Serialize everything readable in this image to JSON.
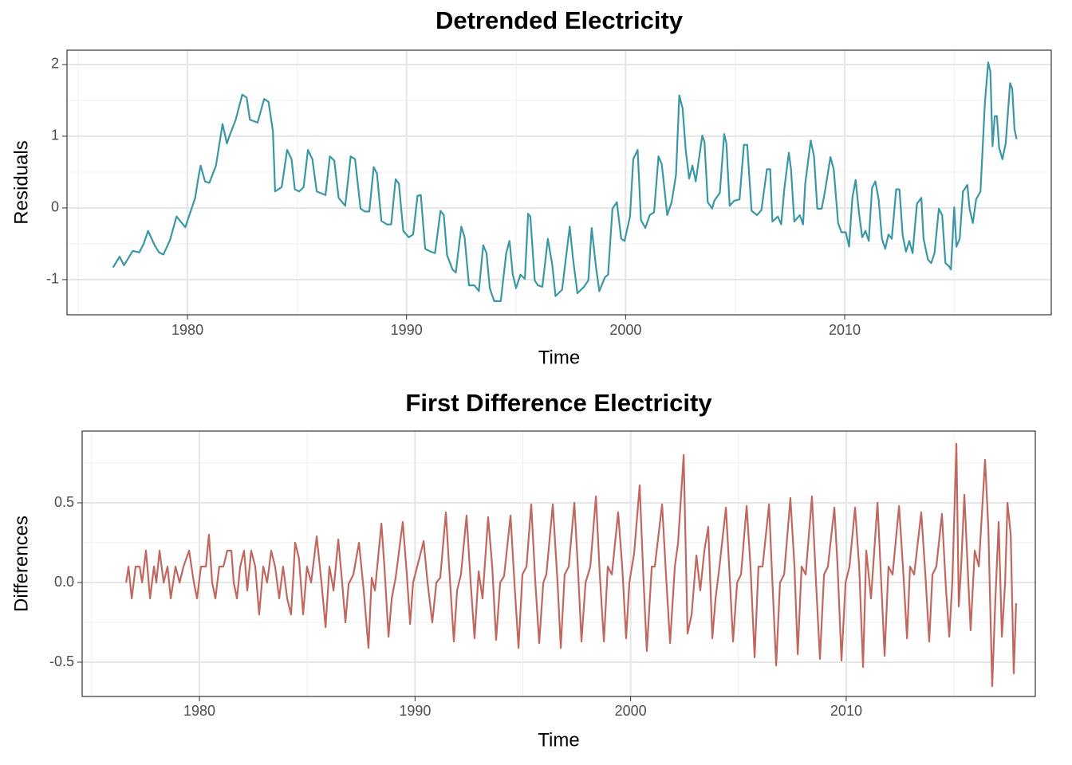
{
  "chart_data": [
    {
      "type": "line",
      "title": "Detrended Electricity",
      "x_label": "Time",
      "y_label": "Residuals",
      "color": "#3a97a5",
      "xlim": [
        1974.5,
        2019.43
      ],
      "ylim": [
        -1.49,
        2.2
      ],
      "xticks": [
        1980,
        1990,
        2000,
        2010
      ],
      "yticks": [
        -1,
        0,
        1,
        2
      ],
      "grid": true,
      "x": [
        1976.6,
        1976.9,
        1977.1,
        1977.5,
        1977.8,
        1978.0,
        1978.2,
        1978.5,
        1978.7,
        1978.9,
        1979.2,
        1979.5,
        1979.9,
        1980.35,
        1980.5,
        1980.6,
        1980.8,
        1981.0,
        1981.3,
        1981.6,
        1981.8,
        1981.9,
        1982.2,
        1982.5,
        1982.7,
        1982.85,
        1983.2,
        1983.5,
        1983.7,
        1983.9,
        1984.0,
        1984.3,
        1984.55,
        1984.75,
        1984.9,
        1985.1,
        1985.3,
        1985.5,
        1985.7,
        1985.9,
        1986.3,
        1986.5,
        1986.7,
        1986.9,
        1987.2,
        1987.45,
        1987.65,
        1987.9,
        1988.1,
        1988.3,
        1988.5,
        1988.65,
        1988.85,
        1989.1,
        1989.3,
        1989.5,
        1989.65,
        1989.85,
        1990.1,
        1990.3,
        1990.5,
        1990.65,
        1990.85,
        1991.1,
        1991.3,
        1991.55,
        1991.7,
        1991.85,
        1992.1,
        1992.25,
        1992.5,
        1992.65,
        1992.85,
        1993.1,
        1993.3,
        1993.5,
        1993.65,
        1993.8,
        1994.0,
        1994.3,
        1994.55,
        1994.7,
        1994.85,
        1995.0,
        1995.2,
        1995.4,
        1995.55,
        1995.65,
        1995.85,
        1996.0,
        1996.2,
        1996.45,
        1996.65,
        1996.8,
        1997.1,
        1997.45,
        1997.6,
        1997.8,
        1998.1,
        1998.3,
        1998.45,
        1998.65,
        1998.8,
        1999.05,
        1999.2,
        1999.4,
        1999.6,
        1999.8,
        1999.95,
        2000.2,
        2000.35,
        2000.55,
        2000.7,
        2000.9,
        2001.1,
        2001.3,
        2001.5,
        2001.65,
        2001.9,
        2002.1,
        2002.3,
        2002.45,
        2002.6,
        2002.75,
        2002.9,
        2003.05,
        2003.2,
        2003.5,
        2003.6,
        2003.75,
        2003.95,
        2004.05,
        2004.3,
        2004.5,
        2004.6,
        2004.75,
        2004.95,
        2005.2,
        2005.4,
        2005.55,
        2005.75,
        2006.0,
        2006.2,
        2006.45,
        2006.6,
        2006.7,
        2006.95,
        2007.1,
        2007.25,
        2007.45,
        2007.55,
        2007.7,
        2007.95,
        2008.1,
        2008.2,
        2008.45,
        2008.6,
        2008.75,
        2008.95,
        2009.1,
        2009.35,
        2009.5,
        2009.7,
        2009.85,
        2010.05,
        2010.2,
        2010.35,
        2010.5,
        2010.65,
        2010.8,
        2010.95,
        2011.1,
        2011.25,
        2011.4,
        2011.55,
        2011.7,
        2011.85,
        2012.0,
        2012.15,
        2012.35,
        2012.5,
        2012.65,
        2012.8,
        2012.95,
        2013.1,
        2013.3,
        2013.5,
        2013.6,
        2013.8,
        2013.95,
        2014.1,
        2014.3,
        2014.45,
        2014.6,
        2014.75,
        2014.85,
        2015.0,
        2015.1,
        2015.25,
        2015.4,
        2015.6,
        2015.7,
        2015.85,
        2016.0,
        2016.2,
        2016.4,
        2016.55,
        2016.65,
        2016.75,
        2016.85,
        2016.95,
        2017.05,
        2017.2,
        2017.35,
        2017.55,
        2017.65,
        2017.75,
        2017.85
      ],
      "values": [
        -0.83,
        -0.68,
        -0.8,
        -0.6,
        -0.62,
        -0.5,
        -0.32,
        -0.52,
        -0.62,
        -0.65,
        -0.45,
        -0.12,
        -0.27,
        0.14,
        0.43,
        0.59,
        0.37,
        0.35,
        0.59,
        1.17,
        0.9,
        0.99,
        1.23,
        1.58,
        1.54,
        1.23,
        1.19,
        1.52,
        1.48,
        1.07,
        0.23,
        0.29,
        0.81,
        0.68,
        0.26,
        0.23,
        0.29,
        0.81,
        0.68,
        0.23,
        0.18,
        0.72,
        0.66,
        0.14,
        0.03,
        0.72,
        0.68,
        -0.01,
        -0.05,
        -0.05,
        0.57,
        0.48,
        -0.18,
        -0.23,
        -0.23,
        0.4,
        0.34,
        -0.32,
        -0.41,
        -0.37,
        0.17,
        0.18,
        -0.57,
        -0.61,
        -0.63,
        -0.04,
        -0.1,
        -0.66,
        -0.86,
        -0.9,
        -0.26,
        -0.41,
        -1.08,
        -1.08,
        -1.16,
        -0.52,
        -0.63,
        -1.12,
        -1.3,
        -1.3,
        -0.63,
        -0.46,
        -0.93,
        -1.12,
        -0.93,
        -0.99,
        -0.08,
        -0.12,
        -1.01,
        -1.08,
        -1.1,
        -0.43,
        -0.79,
        -1.23,
        -1.14,
        -0.26,
        -0.71,
        -1.19,
        -1.1,
        -1.01,
        -0.28,
        -0.83,
        -1.16,
        -0.97,
        -0.93,
        -0.01,
        0.08,
        -0.43,
        -0.46,
        -0.12,
        0.68,
        0.81,
        -0.17,
        -0.28,
        -0.1,
        -0.06,
        0.72,
        0.61,
        -0.1,
        0.08,
        0.46,
        1.57,
        1.39,
        0.79,
        0.41,
        0.59,
        0.37,
        1.01,
        0.92,
        0.08,
        -0.01,
        0.1,
        0.21,
        1.03,
        0.9,
        0.03,
        0.1,
        0.12,
        0.88,
        0.88,
        -0.04,
        -0.1,
        -0.03,
        0.54,
        0.54,
        -0.19,
        -0.12,
        -0.23,
        0.28,
        0.77,
        0.54,
        -0.19,
        -0.1,
        -0.23,
        0.34,
        0.94,
        0.72,
        -0.01,
        -0.01,
        0.23,
        0.71,
        0.54,
        -0.21,
        -0.34,
        -0.34,
        -0.54,
        0.14,
        0.39,
        -0.06,
        -0.41,
        -0.32,
        -0.46,
        0.28,
        0.37,
        0.12,
        -0.43,
        -0.57,
        -0.37,
        -0.43,
        0.26,
        0.26,
        -0.39,
        -0.61,
        -0.46,
        -0.63,
        0.06,
        0.14,
        -0.43,
        -0.72,
        -0.77,
        -0.63,
        -0.01,
        -0.1,
        -0.77,
        -0.81,
        -0.86,
        0.01,
        -0.54,
        -0.43,
        0.23,
        0.32,
        -0.01,
        -0.21,
        0.12,
        0.23,
        1.46,
        2.03,
        1.9,
        0.86,
        1.28,
        1.28,
        0.84,
        0.68,
        0.9,
        1.74,
        1.66,
        1.1,
        0.96
      ]
    },
    {
      "type": "line",
      "title": "First Difference Electricity",
      "x_label": "Time",
      "y_label": "Differences",
      "color": "#c0685e",
      "xlim": [
        1974.56,
        2018.77
      ],
      "ylim": [
        -0.715,
        0.95
      ],
      "xticks": [
        1980,
        1990,
        2000,
        2010
      ],
      "yticks": [
        -0.5,
        {
          "value": 0,
          "label": "0.0"
        },
        0.5
      ],
      "grid": true,
      "x": [
        1976.6,
        1976.71,
        1976.86,
        1977.04,
        1977.23,
        1977.34,
        1977.52,
        1977.71,
        1977.89,
        1978.0,
        1978.15,
        1978.34,
        1978.52,
        1978.67,
        1978.89,
        1979.08,
        1979.26,
        1979.52,
        1979.74,
        1979.89,
        1980.07,
        1980.3,
        1980.44,
        1980.59,
        1980.74,
        1980.92,
        1981.11,
        1981.29,
        1981.48,
        1981.59,
        1981.74,
        1981.89,
        1982.07,
        1982.22,
        1982.4,
        1982.59,
        1982.77,
        1982.96,
        1983.14,
        1983.33,
        1983.51,
        1983.7,
        1983.88,
        1984.07,
        1984.25,
        1984.44,
        1984.62,
        1984.81,
        1984.99,
        1985.18,
        1985.44,
        1985.66,
        1985.85,
        1986.03,
        1986.22,
        1986.44,
        1986.62,
        1986.77,
        1986.92,
        1987.14,
        1987.4,
        1987.62,
        1987.84,
        1987.99,
        1988.14,
        1988.44,
        1988.58,
        1988.77,
        1988.92,
        1989.1,
        1989.43,
        1989.62,
        1989.77,
        1989.91,
        1990.1,
        1990.4,
        1990.58,
        1990.8,
        1990.99,
        1991.17,
        1991.43,
        1991.58,
        1991.8,
        1991.95,
        1992.13,
        1992.39,
        1992.58,
        1992.76,
        1992.95,
        1993.13,
        1993.39,
        1993.58,
        1993.76,
        1993.95,
        1994.13,
        1994.43,
        1994.61,
        1994.8,
        1994.98,
        1995.17,
        1995.39,
        1995.58,
        1995.76,
        1995.95,
        1996.09,
        1996.39,
        1996.61,
        1996.76,
        1996.94,
        1997.13,
        1997.39,
        1997.57,
        1997.72,
        1997.91,
        1998.13,
        1998.39,
        1998.57,
        1998.76,
        1998.94,
        1999.13,
        1999.42,
        1999.61,
        1999.79,
        1999.94,
        2000.16,
        2000.42,
        2000.57,
        2000.75,
        2000.98,
        2001.12,
        2001.46,
        2001.64,
        2001.83,
        2002.05,
        2002.2,
        2002.46,
        2002.64,
        2002.83,
        2003.05,
        2003.23,
        2003.42,
        2003.6,
        2003.79,
        2003.94,
        2004.12,
        2004.42,
        2004.57,
        2004.75,
        2004.94,
        2005.12,
        2005.38,
        2005.56,
        2005.75,
        2005.93,
        2006.12,
        2006.42,
        2006.56,
        2006.75,
        2006.93,
        2007.12,
        2007.41,
        2007.6,
        2007.75,
        2007.93,
        2008.12,
        2008.41,
        2008.6,
        2008.78,
        2008.97,
        2009.15,
        2009.45,
        2009.6,
        2009.78,
        2009.97,
        2010.15,
        2010.41,
        2010.6,
        2010.78,
        2010.93,
        2011.15,
        2011.45,
        2011.59,
        2011.78,
        2011.96,
        2012.15,
        2012.45,
        2012.63,
        2012.82,
        2012.96,
        2013.15,
        2013.48,
        2013.67,
        2013.85,
        2014.0,
        2014.18,
        2014.44,
        2014.63,
        2014.78,
        2014.92,
        2015.11,
        2015.22,
        2015.33,
        2015.48,
        2015.63,
        2015.77,
        2015.96,
        2016.15,
        2016.44,
        2016.59,
        2016.77,
        2016.92,
        2017.07,
        2017.22,
        2017.37,
        2017.48,
        2017.63,
        2017.77,
        2017.88
      ],
      "values": [
        0,
        0.1,
        -0.1,
        0.1,
        0.1,
        0,
        0.2,
        -0.1,
        0.1,
        0,
        0.2,
        0,
        0.1,
        -0.1,
        0.1,
        0,
        0.1,
        0.2,
        0,
        -0.1,
        0.1,
        0.1,
        0.3,
        0,
        -0.1,
        0.1,
        0.1,
        0.2,
        0.2,
        0,
        -0.1,
        0.1,
        0.2,
        -0.05,
        0.2,
        0.1,
        -0.2,
        0.1,
        0,
        0.2,
        0.1,
        -0.1,
        0.1,
        -0.1,
        -0.2,
        0.25,
        0.15,
        -0.2,
        0.1,
        0,
        0.29,
        0,
        -0.28,
        0.1,
        -0.05,
        0.27,
        0,
        -0.25,
        -0.01,
        0.05,
        0.25,
        -0.05,
        -0.41,
        0.03,
        -0.05,
        0.37,
        0.1,
        -0.34,
        -0.1,
        0.03,
        0.38,
        0.05,
        -0.26,
        0,
        0.1,
        0.26,
        0,
        -0.25,
        0,
        0.03,
        0.44,
        0.1,
        -0.37,
        -0.05,
        0.05,
        0.42,
        0,
        -0.35,
        0.07,
        -0.1,
        0.41,
        0.1,
        -0.36,
        0,
        0.04,
        0.42,
        0,
        -0.41,
        0.05,
        0.1,
        0.49,
        0,
        -0.38,
        0,
        0.05,
        0.49,
        0,
        -0.41,
        0.05,
        0.1,
        0.5,
        0.05,
        -0.37,
        0,
        0.1,
        0.54,
        0.05,
        -0.37,
        0.1,
        0.05,
        0.44,
        0.1,
        -0.35,
        0,
        0.18,
        0.61,
        0.1,
        -0.43,
        0.1,
        0.1,
        0.49,
        0.05,
        -0.38,
        0.1,
        0.25,
        0.8,
        -0.32,
        -0.2,
        0.17,
        -0.05,
        0.2,
        0.35,
        -0.35,
        -0.1,
        0.1,
        0.47,
        0.1,
        -0.37,
        0,
        0.05,
        0.48,
        0.1,
        -0.47,
        0.1,
        0.1,
        0.49,
        0.05,
        -0.52,
        0,
        0.05,
        0.53,
        0.1,
        -0.45,
        0.1,
        0.05,
        0.54,
        0,
        -0.48,
        0.05,
        0.1,
        0.47,
        0.1,
        -0.49,
        0,
        0.1,
        0.47,
        0.1,
        -0.53,
        0.2,
        -0.1,
        0.5,
        0.1,
        -0.46,
        0.1,
        0.05,
        0.48,
        0.1,
        -0.35,
        0.1,
        0.05,
        0.44,
        0.05,
        -0.37,
        0.05,
        0.1,
        0.43,
        -0.05,
        -0.34,
        0,
        0.87,
        -0.15,
        0.1,
        0.55,
        0.1,
        -0.3,
        0.2,
        0.1,
        0.77,
        0.35,
        -0.65,
        -0.1,
        0.38,
        -0.34,
        0,
        0.5,
        0.3,
        -0.57,
        -0.13
      ]
    }
  ]
}
